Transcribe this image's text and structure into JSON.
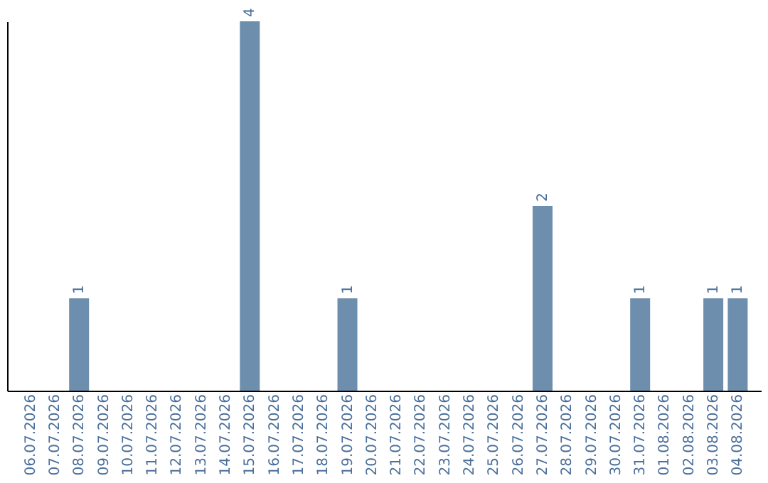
{
  "chart_data": {
    "type": "bar",
    "categories": [
      "06.07.2026",
      "07.07.2026",
      "08.07.2026",
      "09.07.2026",
      "10.07.2026",
      "11.07.2026",
      "12.07.2026",
      "13.07.2026",
      "14.07.2026",
      "15.07.2026",
      "16.07.2026",
      "17.07.2026",
      "18.07.2026",
      "19.07.2026",
      "20.07.2026",
      "21.07.2026",
      "22.07.2026",
      "23.07.2026",
      "24.07.2026",
      "25.07.2026",
      "26.07.2026",
      "27.07.2026",
      "28.07.2026",
      "29.07.2026",
      "30.07.2026",
      "31.07.2026",
      "01.08.2026",
      "02.08.2026",
      "03.08.2026",
      "04.08.2026"
    ],
    "values": [
      0,
      0,
      1,
      0,
      0,
      0,
      0,
      0,
      0,
      4,
      0,
      0,
      0,
      1,
      0,
      0,
      0,
      0,
      0,
      0,
      0,
      2,
      0,
      0,
      0,
      1,
      0,
      0,
      1,
      1
    ],
    "value_labels": [
      null,
      null,
      "1",
      null,
      null,
      null,
      null,
      null,
      null,
      "4",
      null,
      null,
      null,
      "1",
      null,
      null,
      null,
      null,
      null,
      null,
      null,
      "2",
      null,
      null,
      null,
      "1",
      null,
      null,
      "1",
      "1"
    ],
    "color": "#6d8fad",
    "grid": false
  }
}
